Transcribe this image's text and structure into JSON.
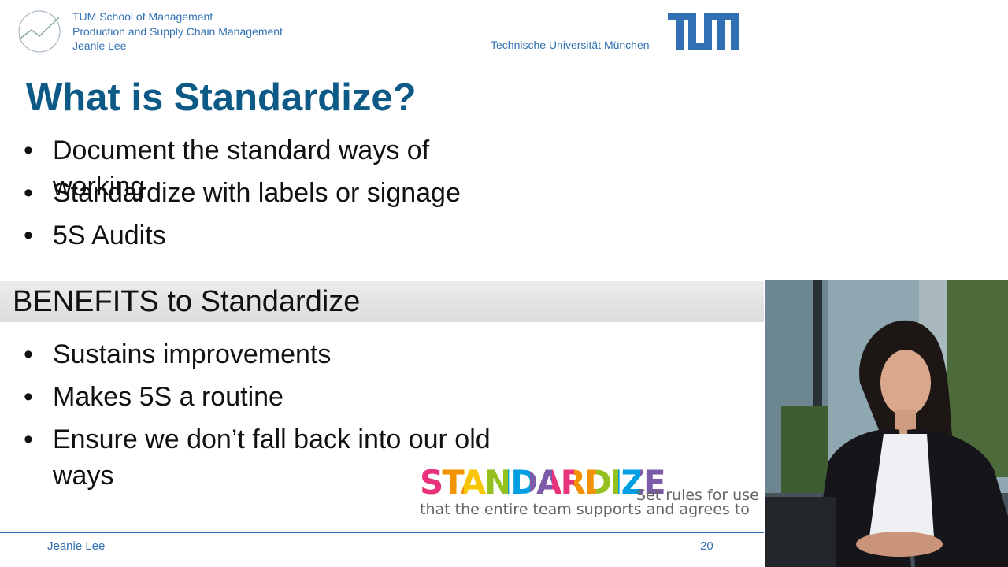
{
  "header": {
    "lines": [
      "TUM School of Management",
      "Production and Supply Chain Management",
      "Jeanie Lee"
    ],
    "university": "Technische Universität München"
  },
  "title": "What is Standardize?",
  "bullets": [
    "Document the standard ways of working",
    "Standardize with labels or signage",
    "5S Audits"
  ],
  "section_title": "BENEFITS to Standardize",
  "benefits": [
    "Sustains improvements",
    "Makes 5S a routine",
    "Ensure we don’t fall back into our old ways"
  ],
  "graphic": {
    "word": "STANDARDIZE",
    "tagline_1": "Set rules for use",
    "tagline_2": "that the entire team supports and agrees to"
  },
  "footer": {
    "author": "Jeanie Lee",
    "page": "20"
  }
}
